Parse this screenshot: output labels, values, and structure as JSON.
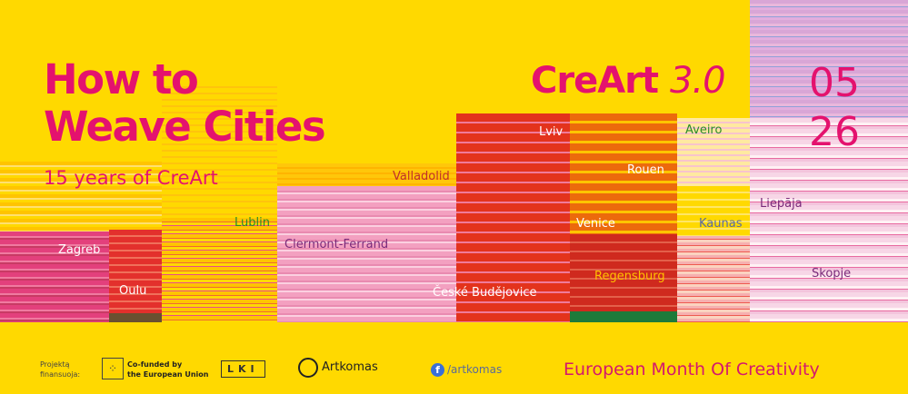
{
  "title_line1": "How to",
  "title_line2": "Weave Cities",
  "subtitle": "15 years of CreArt",
  "brand": "CreArt",
  "brand_version": "3.0",
  "date_month": "05",
  "date_year": "26",
  "cities": [
    "Zagreb",
    "Oulu",
    "Lublin",
    "Clermont-Ferrand",
    "Valladolid",
    "Lviv",
    "České Budějovice",
    "Rouen",
    "Venice",
    "Regensburg",
    "Aveiro",
    "Kaunas",
    "Liepāja",
    "Skopje"
  ],
  "footer": {
    "funded_label": "Projektą finansuoja:",
    "eu_label_line1": "Co-funded by",
    "eu_label_line2": "the European Union",
    "lki_label": "LKI",
    "artkomas_label": "Artkomas",
    "facebook_handle": "/artkomas",
    "tagline": "European Month Of Creativity"
  },
  "colors": {
    "background": "#ffd900",
    "accent": "#e4126e"
  }
}
